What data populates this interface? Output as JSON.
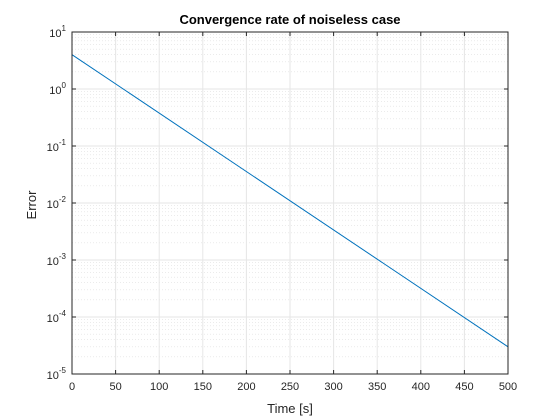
{
  "chart_data": {
    "type": "line",
    "title": "Convergence rate of noiseless case",
    "xlabel": "Time [s]",
    "ylabel": "Error",
    "xlim": [
      0,
      500
    ],
    "ylim_exponents": [
      -5,
      1
    ],
    "yscale": "log",
    "grid": true,
    "minor_grid": true,
    "x_ticks": [
      0,
      50,
      100,
      150,
      200,
      250,
      300,
      350,
      400,
      450,
      500
    ],
    "y_ticks": [
      {
        "base": "10",
        "exp": "1"
      },
      {
        "base": "10",
        "exp": "0"
      },
      {
        "base": "10",
        "exp": "-1"
      },
      {
        "base": "10",
        "exp": "-2"
      },
      {
        "base": "10",
        "exp": "-3"
      },
      {
        "base": "10",
        "exp": "-4"
      },
      {
        "base": "10",
        "exp": "-5"
      }
    ],
    "series": [
      {
        "color": "#0072BD",
        "x": [
          0,
          500
        ],
        "y": [
          4.0,
          3e-05
        ]
      }
    ]
  }
}
